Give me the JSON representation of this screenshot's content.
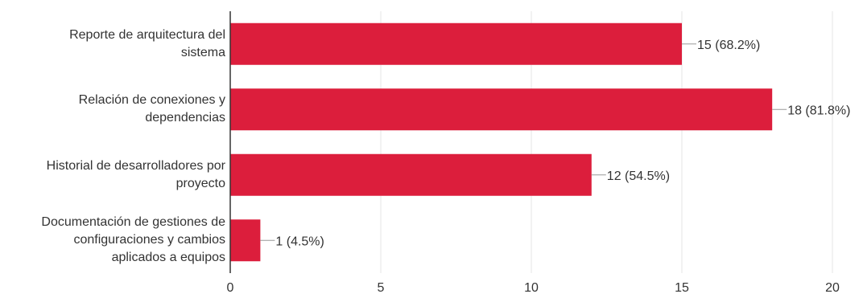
{
  "chart_data": {
    "type": "bar",
    "orientation": "horizontal",
    "categories": [
      "Reporte de arquitectura del\nsistema",
      "Relación de conexiones y\ndependencias",
      "Historial de desarrolladores por\nproyecto",
      "Documentación de gestiones de\nconfiguraciones y cambios\naplicados a equipos"
    ],
    "values": [
      15,
      18,
      12,
      1
    ],
    "data_labels": [
      "15 (68.2%)",
      "18 (81.8%)",
      "12 (54.5%)",
      "1 (4.5%)"
    ],
    "xlim": [
      0,
      20
    ],
    "x_ticks": [
      "0",
      "5",
      "10",
      "15",
      "20"
    ],
    "grid": true,
    "legend": "none",
    "colors": {
      "bar": "#dc1e3c",
      "grid": "#e6e6e6",
      "axis": "#333333",
      "text": "#333333",
      "leader": "#999999"
    }
  }
}
